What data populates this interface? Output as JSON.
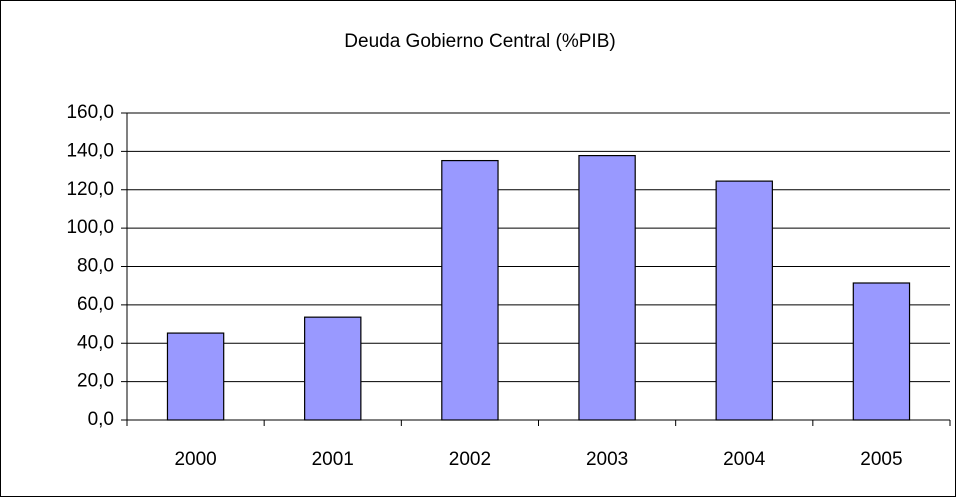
{
  "chart_data": {
    "type": "bar",
    "title": "Deuda Gobierno Central (%PIB)",
    "categories": [
      "2000",
      "2001",
      "2002",
      "2003",
      "2004",
      "2005"
    ],
    "values": [
      45.3,
      53.6,
      135.2,
      137.8,
      124.5,
      71.4
    ],
    "color": "#9999ff",
    "ylim": [
      0,
      160
    ],
    "yticks": [
      {
        "value": 0,
        "label": "0,0"
      },
      {
        "value": 20,
        "label": "20,0"
      },
      {
        "value": 40,
        "label": "40,0"
      },
      {
        "value": 60,
        "label": "60,0"
      },
      {
        "value": 80,
        "label": "80,0"
      },
      {
        "value": 100,
        "label": "100,0"
      },
      {
        "value": 120,
        "label": "120,0"
      },
      {
        "value": 140,
        "label": "140,0"
      },
      {
        "value": 160,
        "label": "160,0"
      }
    ],
    "grid": true
  }
}
